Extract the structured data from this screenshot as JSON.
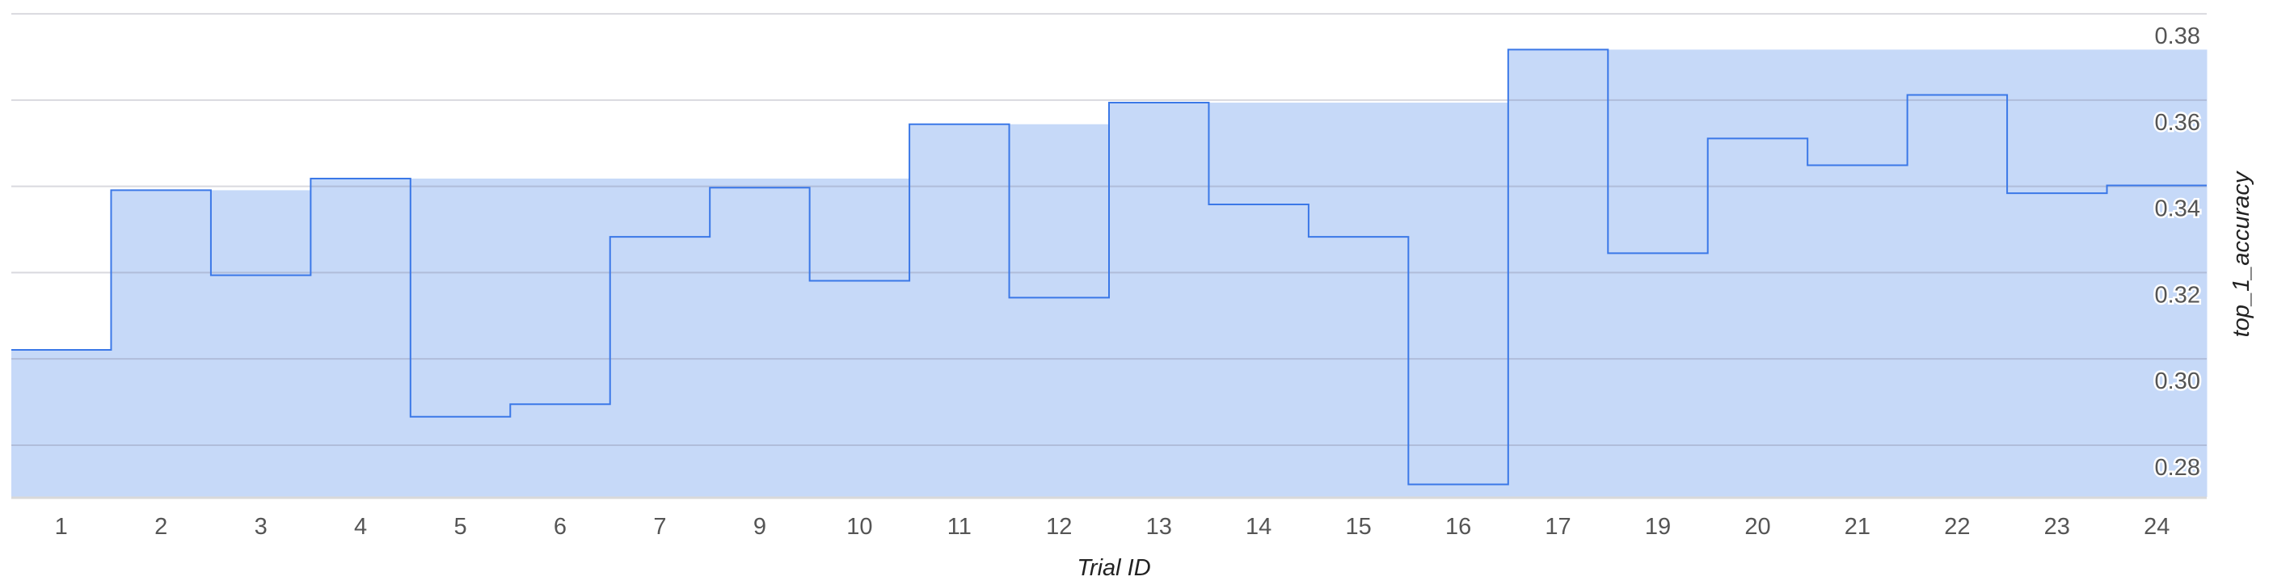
{
  "chart_data": {
    "type": "line",
    "subtype": "step",
    "xlabel": "Trial ID",
    "ylabel": "top_1_accuracy",
    "categories": [
      "1",
      "2",
      "3",
      "4",
      "5",
      "6",
      "7",
      "9",
      "10",
      "11",
      "12",
      "13",
      "14",
      "15",
      "16",
      "17",
      "19",
      "20",
      "21",
      "22",
      "23",
      "24"
    ],
    "series": [
      {
        "values": [
          0.3021,
          0.3391,
          0.3194,
          0.3418,
          0.2866,
          0.2895,
          0.3283,
          0.3397,
          0.3181,
          0.3544,
          0.3142,
          0.3594,
          0.3358,
          0.3283,
          0.2709,
          0.3717,
          0.3245,
          0.3511,
          0.3449,
          0.3612,
          0.3384,
          0.3402
        ]
      }
    ],
    "area_fill": "running maximum (best so far)",
    "ylim": [
      0.268,
      0.3832
    ],
    "yticks": [
      "0.28",
      "0.30",
      "0.32",
      "0.34",
      "0.36",
      "0.38"
    ],
    "ytick_values": [
      0.28,
      0.3,
      0.32,
      0.34,
      0.36,
      0.38
    ],
    "y_axis_side": "right",
    "grid": true,
    "colors": {
      "line": "#3b78e7",
      "fill": "#c6d9f8",
      "grid": "#d9d9d9"
    }
  }
}
